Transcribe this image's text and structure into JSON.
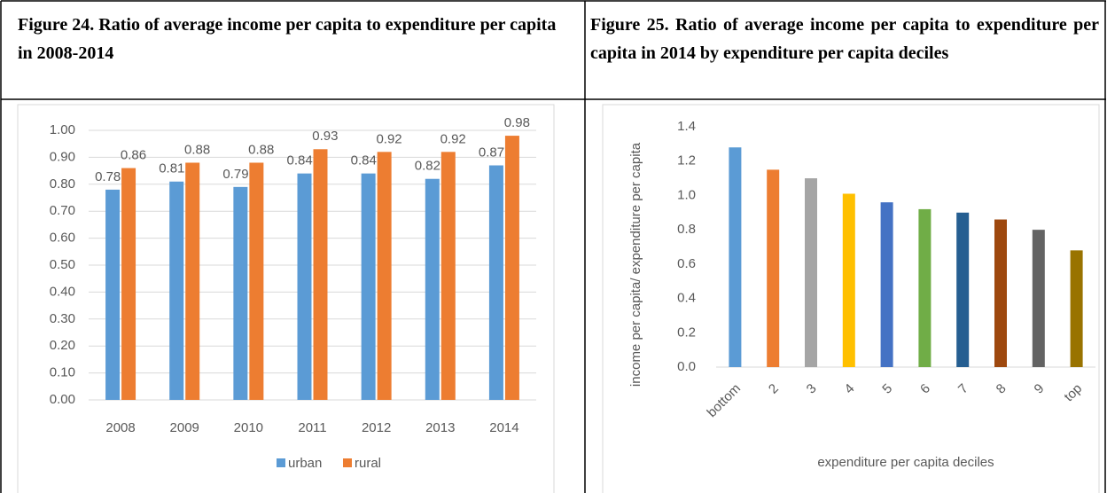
{
  "chart_data": [
    {
      "type": "bar",
      "title": "Figure 24. Ratio of average income per capita to expenditure per capita in 2008-2014",
      "categories": [
        "2008",
        "2009",
        "2010",
        "2011",
        "2012",
        "2013",
        "2014"
      ],
      "series": [
        {
          "name": "urban",
          "color": "#5b9bd5",
          "values": [
            0.78,
            0.81,
            0.79,
            0.84,
            0.84,
            0.82,
            0.87
          ]
        },
        {
          "name": "rural",
          "color": "#ed7d31",
          "values": [
            0.86,
            0.88,
            0.88,
            0.93,
            0.92,
            0.92,
            0.98
          ]
        }
      ],
      "ylim": [
        0,
        1
      ],
      "yticks": [
        {
          "value": 0,
          "label": "0.00"
        },
        {
          "value": 0.1,
          "label": "0.10"
        },
        {
          "value": 0.2,
          "label": "0.20"
        },
        {
          "value": 0.3,
          "label": "0.30"
        },
        {
          "value": 0.4,
          "label": "0.40"
        },
        {
          "value": 0.5,
          "label": "0.50"
        },
        {
          "value": 0.6,
          "label": "0.60"
        },
        {
          "value": 0.7,
          "label": "0.70"
        },
        {
          "value": 0.8,
          "label": "0.80"
        },
        {
          "value": 0.9,
          "label": "0.90"
        },
        {
          "value": 1,
          "label": "1.00"
        }
      ],
      "grid": true,
      "legend": "bottom"
    },
    {
      "type": "bar",
      "title": "Figure 25. Ratio of average income per capita to expenditure per capita in 2014 by expenditure per capita deciles",
      "categories": [
        "bottom",
        "2",
        "3",
        "4",
        "5",
        "6",
        "7",
        "8",
        "9",
        "top"
      ],
      "values": [
        1.28,
        1.15,
        1.1,
        1.01,
        0.96,
        0.92,
        0.9,
        0.86,
        0.8,
        0.68
      ],
      "colors": [
        "#5b9bd5",
        "#ed7d31",
        "#a5a5a5",
        "#ffc000",
        "#4472c4",
        "#70ad47",
        "#255e91",
        "#9e480e",
        "#636363",
        "#997300"
      ],
      "y_label": "income per capita/ expenditure per capita",
      "x_label": "expenditure per capita deciles",
      "ylim": [
        0,
        1.4
      ],
      "yticks": [
        {
          "value": 0,
          "label": "0.0"
        },
        0.2,
        0.4,
        0.6,
        0.8,
        {
          "value": 1,
          "label": "1.0"
        },
        1.2,
        1.4
      ],
      "grid": false
    }
  ]
}
